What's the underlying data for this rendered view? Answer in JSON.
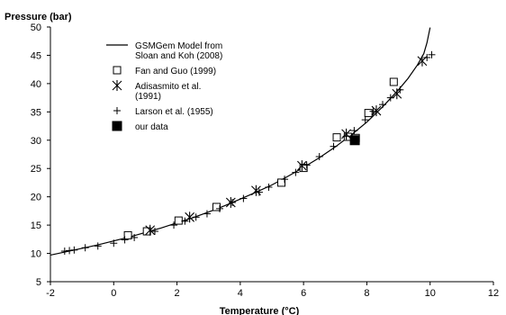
{
  "chart_data": {
    "type": "scatter",
    "title": "",
    "xlabel": "Temperature (°C)",
    "ylabel": "Pressure (bar)",
    "xlim": [
      -2,
      12
    ],
    "ylim": [
      5,
      50
    ],
    "xticks": [
      "-2",
      "0",
      "2",
      "4",
      "6",
      "8",
      "10",
      "12"
    ],
    "yticks": [
      "5",
      "10",
      "15",
      "20",
      "25",
      "30",
      "35",
      "40",
      "45",
      "50"
    ],
    "grid": false,
    "legend_position": "top-left",
    "series": [
      {
        "name": "GSMGem Model from Sloan and Koh (2008)",
        "legend_lines": [
          "GSMGem Model from",
          "Sloan and Koh (2008)"
        ],
        "marker": "line",
        "color": "#000000",
        "points": [
          [
            -2,
            9.7
          ],
          [
            -1.5,
            10.3
          ],
          [
            -1,
            10.9
          ],
          [
            -0.5,
            11.5
          ],
          [
            0,
            12.2
          ],
          [
            0.5,
            12.9
          ],
          [
            1,
            13.7
          ],
          [
            1.5,
            14.5
          ],
          [
            2,
            15.4
          ],
          [
            2.5,
            16.3
          ],
          [
            3,
            17.3
          ],
          [
            3.5,
            18.4
          ],
          [
            4,
            19.6
          ],
          [
            4.5,
            20.8
          ],
          [
            5,
            22.1
          ],
          [
            5.5,
            23.6
          ],
          [
            6,
            25.2
          ],
          [
            6.5,
            26.9
          ],
          [
            7,
            28.8
          ],
          [
            7.5,
            30.9
          ],
          [
            8,
            33.2
          ],
          [
            8.5,
            35.9
          ],
          [
            9,
            38.9
          ],
          [
            9.3,
            40.9
          ],
          [
            9.6,
            43.3
          ],
          [
            9.8,
            45.3
          ],
          [
            9.9,
            47.2
          ],
          [
            10.0,
            49.9
          ]
        ]
      },
      {
        "name": "Fan and Guo (1999)",
        "marker": "open-square",
        "points": [
          [
            0.45,
            13.2
          ],
          [
            1.05,
            13.9
          ],
          [
            2.05,
            15.8
          ],
          [
            3.25,
            18.2
          ],
          [
            5.3,
            22.5
          ],
          [
            6.0,
            25.1
          ],
          [
            7.05,
            30.5
          ],
          [
            7.4,
            30.6
          ],
          [
            7.65,
            30.4
          ],
          [
            8.05,
            34.8
          ],
          [
            8.85,
            40.3
          ]
        ]
      },
      {
        "name": "Adisasmito et al. (1991)",
        "legend_lines": [
          "Adisasmito et al.",
          "(1991)"
        ],
        "marker": "asterisk",
        "points": [
          [
            1.15,
            14.1
          ],
          [
            2.4,
            16.4
          ],
          [
            3.7,
            19.0
          ],
          [
            4.5,
            21.1
          ],
          [
            5.95,
            25.5
          ],
          [
            7.35,
            31.1
          ],
          [
            8.3,
            35.2
          ],
          [
            8.95,
            38.2
          ],
          [
            9.75,
            44.0
          ]
        ]
      },
      {
        "name": "Larson et al. (1955)",
        "marker": "plus",
        "points": [
          [
            -1.55,
            10.4
          ],
          [
            -1.4,
            10.5
          ],
          [
            -1.25,
            10.6
          ],
          [
            -0.9,
            11.0
          ],
          [
            -0.5,
            11.3
          ],
          [
            0.0,
            11.8
          ],
          [
            0.35,
            12.4
          ],
          [
            0.65,
            12.8
          ],
          [
            1.3,
            13.9
          ],
          [
            1.9,
            15.0
          ],
          [
            2.25,
            15.7
          ],
          [
            2.6,
            16.4
          ],
          [
            2.95,
            17.0
          ],
          [
            3.35,
            17.9
          ],
          [
            3.75,
            19.0
          ],
          [
            4.1,
            19.7
          ],
          [
            4.6,
            20.8
          ],
          [
            4.9,
            21.7
          ],
          [
            5.4,
            23.1
          ],
          [
            5.75,
            24.3
          ],
          [
            6.1,
            25.6
          ],
          [
            6.5,
            27.1
          ],
          [
            6.95,
            28.9
          ],
          [
            7.35,
            30.7
          ],
          [
            7.6,
            31.7
          ],
          [
            7.95,
            33.6
          ],
          [
            8.2,
            35.1
          ],
          [
            8.5,
            36.3
          ],
          [
            8.75,
            37.5
          ],
          [
            9.05,
            38.9
          ],
          [
            9.9,
            44.6
          ],
          [
            10.05,
            45.1
          ]
        ]
      },
      {
        "name": "our data",
        "marker": "filled-square",
        "points": [
          [
            7.62,
            30.0
          ]
        ]
      }
    ]
  }
}
